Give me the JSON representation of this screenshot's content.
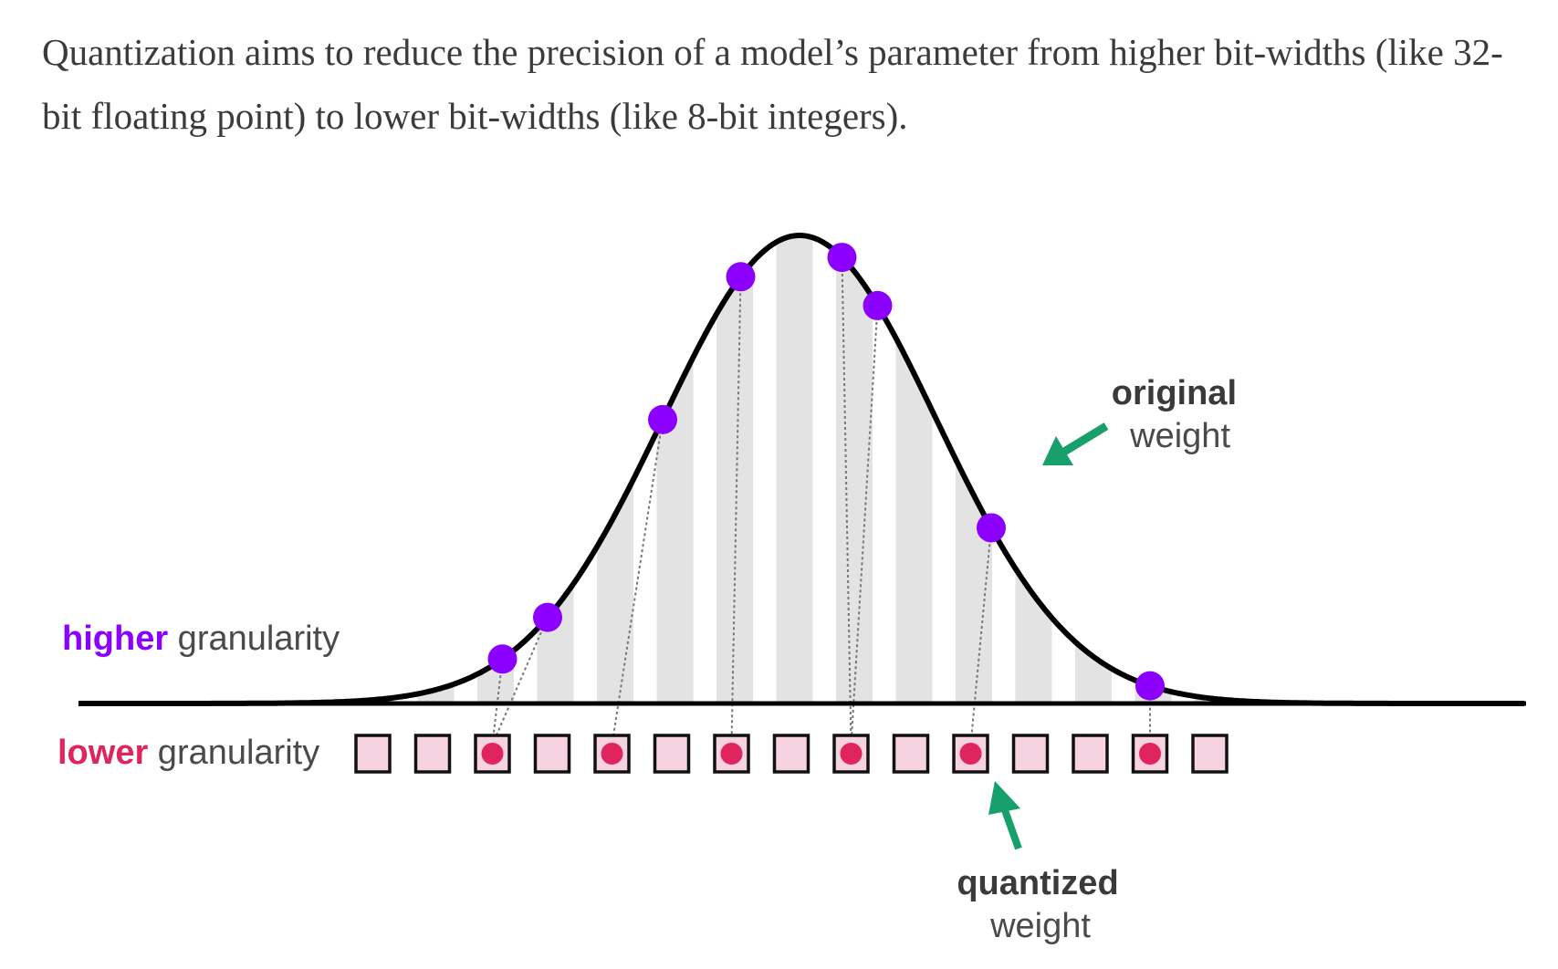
{
  "intro_text": "Quantization aims to reduce the precision of a model’s parameter from higher bit-widths (like 32-bit floating point) to lower bit-widths (like 8-bit integers).",
  "labels": {
    "higher_bold": "higher",
    "higher_rest": " granularity",
    "lower_bold": "lower",
    "lower_rest": " granularity",
    "original_bold": "original",
    "original_rest": "weight",
    "quantized_bold": "quantized",
    "quantized_rest": "weight"
  },
  "colors": {
    "purple": "#8b00ff",
    "pink_dot": "#e0245e",
    "box_fill": "#f7d3e2",
    "stripe": "#e3e3e3",
    "arrow_green": "#17a06b",
    "curve": "#000000"
  },
  "bins": 15,
  "quantized_bins": [
    2,
    4,
    6,
    8,
    10,
    13
  ],
  "original_weights": [
    {
      "x": -2.17,
      "bin": 2
    },
    {
      "x": -1.84,
      "bin": 2
    },
    {
      "x": -1.0,
      "bin": 4
    },
    {
      "x": -0.43,
      "bin": 6
    },
    {
      "x": 0.31,
      "bin": 8
    },
    {
      "x": 0.57,
      "bin": 8
    },
    {
      "x": 1.4,
      "bin": 10
    },
    {
      "x": 2.56,
      "bin": 13
    }
  ]
}
